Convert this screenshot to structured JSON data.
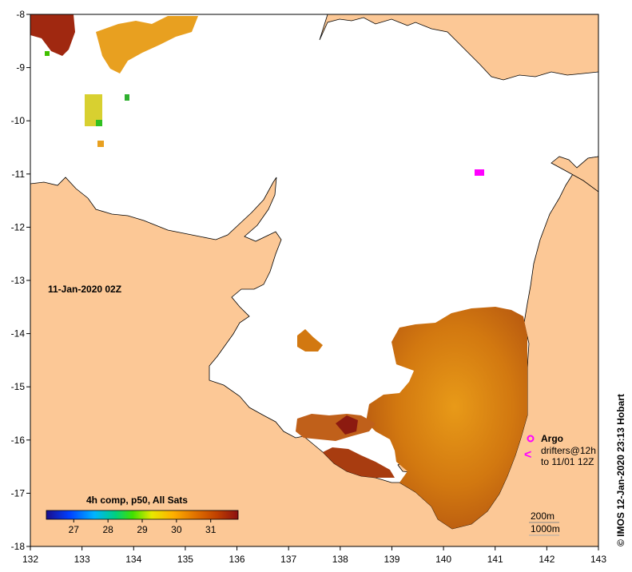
{
  "map": {
    "date_label": "11-Jan-2020 02Z",
    "credit": "© IMOS 12-Jan-2020 23:13 Hobart",
    "x_ticks": [
      "132",
      "133",
      "134",
      "135",
      "136",
      "137",
      "138",
      "139",
      "140",
      "141",
      "142",
      "143"
    ],
    "y_ticks": [
      "-8",
      "-9",
      "-10",
      "-11",
      "-12",
      "-13",
      "-14",
      "-15",
      "-16",
      "-17",
      "-18"
    ],
    "lon_range": [
      132,
      143
    ],
    "lat_range": [
      -18,
      -8
    ],
    "colorbar": {
      "title": "4h comp, p50, All Sats",
      "labels": [
        "27",
        "28",
        "29",
        "30",
        "31"
      ],
      "range": [
        26.2,
        31.8
      ],
      "stops": [
        "#1a0d8c",
        "#0040ff",
        "#00b4ff",
        "#00d080",
        "#40e000",
        "#e8e800",
        "#ffb000",
        "#e07000",
        "#c04000",
        "#8c1010"
      ]
    },
    "legend": {
      "argo_label": "Argo",
      "drifters_label": "drifters@12h",
      "drifters_sub": "to 11/01 12Z",
      "argo_color": "#ff00ff"
    },
    "contours": {
      "line1": "200m",
      "line2": "1000m"
    },
    "colors": {
      "land": "#fcc896",
      "ocean_nodata": "#ffffff",
      "sst_warm": "#d27810"
    }
  }
}
